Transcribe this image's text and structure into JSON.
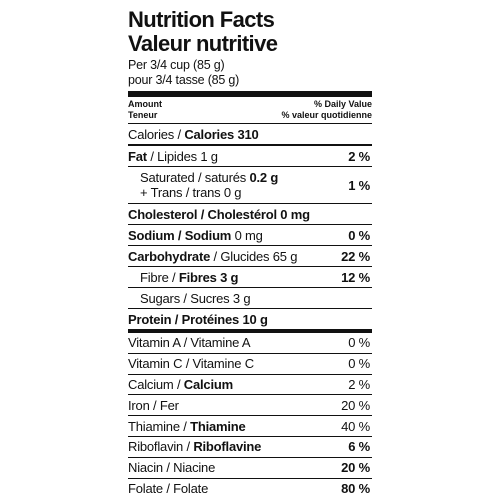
{
  "header": {
    "title": "Nutrition Facts",
    "title_fr": "Valeur nutritive",
    "serving": "Per 3/4 cup (85 g)",
    "serving_fr": "pour 3/4 tasse (85 g)"
  },
  "columns": {
    "amount": "Amount",
    "amount_fr": "Teneur",
    "dv": "% Daily Value",
    "dv_fr": "% valeur quotidienne"
  },
  "rows": [
    {
      "label": [
        {
          "text": "Calories / "
        },
        {
          "text": "Calories 310",
          "bold": true
        }
      ]
    },
    {
      "label": [
        {
          "text": "Fat",
          "bold": true
        },
        {
          "text": " / Lipides 1 g"
        }
      ],
      "dv": "2 %"
    },
    {
      "label": [
        {
          "text": "Saturated / saturés "
        },
        {
          "text": "0.2 g",
          "bold": true
        }
      ],
      "label2": [
        {
          "text": "+ Trans / trans 0 g"
        }
      ],
      "dv": "1 %",
      "indent": true
    },
    {
      "label": [
        {
          "text": "Cholesterol / Cholestérol 0 mg",
          "bold": true
        }
      ]
    },
    {
      "label": [
        {
          "text": "Sodium / Sodium",
          "bold": true
        },
        {
          "text": " 0 mg"
        }
      ],
      "dv": "0 %"
    },
    {
      "label": [
        {
          "text": "Carbohydrate",
          "bold": true
        },
        {
          "text": " / Glucides 65 g"
        }
      ],
      "dv": "22 %"
    },
    {
      "label": [
        {
          "text": "Fibre / "
        },
        {
          "text": "Fibres 3 g",
          "bold": true
        }
      ],
      "dv": "12 %",
      "indent": true
    },
    {
      "label": [
        {
          "text": "Sugars / Sucres 3 g"
        }
      ],
      "indent": true
    },
    {
      "label": [
        {
          "text": "Protein / Protéines 10 g",
          "bold": true
        }
      ]
    }
  ],
  "vitamins": [
    {
      "label": [
        {
          "text": "Vitamin A / Vitamine A"
        }
      ],
      "dv": "0 %"
    },
    {
      "label": [
        {
          "text": "Vitamin C / Vitamine C"
        }
      ],
      "dv": "0 %"
    },
    {
      "label": [
        {
          "text": "Calcium / "
        },
        {
          "text": "Calcium",
          "bold": true
        }
      ],
      "dv": "2 %"
    },
    {
      "label": [
        {
          "text": "Iron / Fer"
        }
      ],
      "dv": "20 %"
    },
    {
      "label": [
        {
          "text": "Thiamine / "
        },
        {
          "text": "Thiamine",
          "bold": true
        }
      ],
      "dv": "40 %"
    },
    {
      "label": [
        {
          "text": "Riboflavin / "
        },
        {
          "text": "Riboflavine",
          "bold": true
        }
      ],
      "dv": "6 %",
      "dv_bold": true
    },
    {
      "label": [
        {
          "text": "Niacin / Niacine"
        }
      ],
      "dv": "20 %",
      "dv_bold": true
    },
    {
      "label": [
        {
          "text": "Folate / Folate"
        }
      ],
      "dv": "80 %",
      "dv_bold": true
    }
  ]
}
